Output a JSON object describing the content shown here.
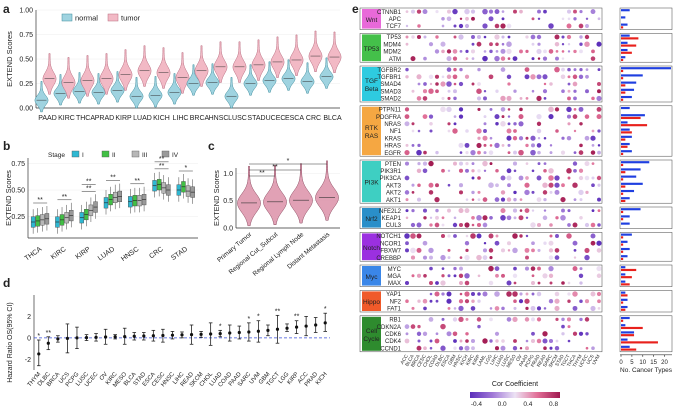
{
  "chart_data": [
    {
      "panel": "a",
      "type": "violin",
      "ylabel": "EXTEND Scores",
      "ylim": [
        0,
        1
      ],
      "yticks": [
        "0.00",
        "0.25",
        "0.50",
        "0.75",
        "1.00"
      ],
      "legend": [
        "normal",
        "tumor"
      ],
      "legend_position": "top-left",
      "categories": [
        "PAAD",
        "KIRC",
        "THCA",
        "PRAD",
        "KIRP",
        "LUAD",
        "KICH",
        "LIHC",
        "BRCA",
        "HNSC",
        "LUSC",
        "STAD",
        "UCEC",
        "ESCA",
        "CRC",
        "BLCA"
      ],
      "series": [
        {
          "name": "normal",
          "values": [
            0.08,
            0.15,
            0.17,
            0.16,
            0.18,
            0.12,
            0.13,
            0.16,
            0.25,
            0.26,
            0.12,
            0.25,
            0.28,
            0.3,
            0.27,
            0.32
          ]
        },
        {
          "name": "tumor",
          "values": [
            0.3,
            0.26,
            0.28,
            0.3,
            0.34,
            0.38,
            0.36,
            0.31,
            0.38,
            0.42,
            0.42,
            0.44,
            0.47,
            0.49,
            0.53,
            0.52
          ]
        }
      ],
      "colors": {
        "normal": "#9fd3e0",
        "tumor": "#f2b9c5"
      }
    },
    {
      "panel": "b",
      "type": "box",
      "ylabel": "EXTEND Scores",
      "ylim": [
        0.05,
        0.8
      ],
      "yticks": [
        "0.25",
        "0.50",
        "0.75"
      ],
      "legend_title": "Stage",
      "legend": [
        "I",
        "II",
        "III",
        "IV"
      ],
      "stage_colors": [
        "#2fb8d2",
        "#42c045",
        "#b7b7b7",
        "#999999"
      ],
      "categories": [
        "THCA",
        "KIRC",
        "KIRP",
        "LUAD",
        "HNSC",
        "CRC",
        "STAD"
      ],
      "stage_medians": [
        [
          0.2,
          0.21,
          0.22,
          0.23
        ],
        [
          0.2,
          0.22,
          0.24,
          0.26
        ],
        [
          0.24,
          0.27,
          0.31,
          0.34
        ],
        [
          0.38,
          0.41,
          0.43,
          0.44
        ],
        [
          0.39,
          0.4,
          0.4,
          0.41
        ],
        [
          0.54,
          0.55,
          0.52,
          0.5
        ],
        [
          0.5,
          0.53,
          0.49,
          0.48
        ]
      ],
      "sig_labels": [
        "**",
        "**",
        "**",
        "**",
        "**",
        "**",
        "**",
        "**",
        "*"
      ]
    },
    {
      "panel": "c",
      "type": "violin",
      "ylabel": "EXTEND Scores",
      "ylim": [
        0,
        1.1
      ],
      "yticks": [
        "0.0",
        "0.5",
        "1.0"
      ],
      "categories": [
        "Primary Tumor",
        "Regional Cut_Subcut",
        "Regional Lymph Node",
        "Distant Metastasis"
      ],
      "values": [
        0.46,
        0.48,
        0.51,
        0.56
      ],
      "sig_labels": [
        "*",
        "**",
        "**"
      ],
      "color": "#d98aa3"
    },
    {
      "panel": "d",
      "type": "errorbar",
      "ylabel": "Hazard Ratio OS(95% CI)",
      "ylim": [
        -3,
        4
      ],
      "yticks": [
        "-2",
        "0",
        "2"
      ],
      "categories": [
        "THYM",
        "DLBC",
        "BRCA",
        "UCS",
        "PCPG",
        "LUSC",
        "UCEC",
        "OV",
        "KIRC",
        "MESO",
        "BLCA",
        "STAD",
        "ESCA",
        "CESC",
        "HNSC",
        "LIHC",
        "READ",
        "SKCM",
        "CHOL",
        "LUAD",
        "COAD",
        "PAAD",
        "SARC",
        "UVM",
        "GBM",
        "TGCT",
        "LGG",
        "KIRP",
        "ACC",
        "PRAD",
        "KICH"
      ],
      "hr": [
        -1.5,
        -0.5,
        -0.1,
        -0.05,
        0.0,
        0.02,
        0.05,
        0.08,
        0.1,
        0.12,
        0.15,
        0.17,
        0.2,
        0.22,
        0.25,
        0.28,
        0.3,
        0.33,
        0.36,
        0.4,
        0.45,
        0.5,
        0.55,
        0.62,
        0.7,
        0.8,
        0.9,
        1.0,
        1.1,
        1.2,
        1.4
      ],
      "lo": [
        -2.6,
        -1.1,
        -0.4,
        -1.4,
        -1.0,
        -0.25,
        -0.3,
        -0.6,
        -0.1,
        -0.6,
        -0.2,
        -0.2,
        -0.3,
        -0.4,
        -0.1,
        0.0,
        -0.6,
        0.05,
        -0.7,
        0.1,
        -0.3,
        -0.1,
        -0.3,
        -0.4,
        0.2,
        -0.5,
        0.6,
        0.4,
        0.2,
        0.5,
        0.6
      ],
      "hi": [
        -0.2,
        0.1,
        0.2,
        1.3,
        1.0,
        0.3,
        0.4,
        0.8,
        0.3,
        0.9,
        0.5,
        0.5,
        0.7,
        0.8,
        0.6,
        0.55,
        1.2,
        0.6,
        1.4,
        0.7,
        1.2,
        1.1,
        1.4,
        1.6,
        1.2,
        2.1,
        1.3,
        1.6,
        2.0,
        1.9,
        2.3
      ],
      "sig": [
        "*",
        "**",
        "",
        "",
        "",
        "",
        "",
        "",
        "",
        "",
        "",
        "",
        "",
        "",
        "",
        "",
        "",
        "",
        "",
        "*",
        "",
        "",
        "*",
        "*",
        "",
        "**",
        "",
        "**",
        "",
        "",
        "*"
      ]
    },
    {
      "panel": "e",
      "type": "dotmatrix",
      "colorbar_label": "Cor Coefficient",
      "colorbar_ticks": [
        "-0.4",
        "0.0",
        "0.4",
        "0.8"
      ],
      "bar_xlabel": "No. Cancer Types",
      "bar_ticks": [
        "0",
        "5",
        "10",
        "15",
        "20"
      ],
      "cancer_types": [
        "ACC",
        "BLCA",
        "BRCA",
        "CESC",
        "CHOL",
        "COAD",
        "DLBC",
        "ESCA",
        "GBM",
        "HNSC",
        "KICH",
        "KIRC",
        "KIRP",
        "LAML",
        "LGG",
        "LIHC",
        "LUAD",
        "LUSC",
        "MESO",
        "OV",
        "PAAD",
        "PCPG",
        "PRAD",
        "READ",
        "SARC",
        "SKCM",
        "STAD",
        "TGCT",
        "THCA",
        "THYM",
        "UCEC",
        "UCS",
        "UVM"
      ],
      "groups": [
        {
          "name": "Wnt",
          "color": "#e869d9",
          "genes": [
            "CTNNB1",
            "APC",
            "TCF7"
          ],
          "red": [
            0,
            0,
            1
          ],
          "blue": [
            4,
            2,
            3
          ]
        },
        {
          "name": "TP53",
          "color": "#44c04a",
          "genes": [
            "TP53",
            "MDM4",
            "MDM2",
            "ATM"
          ],
          "red": [
            8,
            7,
            5,
            1
          ],
          "blue": [
            4,
            3,
            3,
            2
          ]
        },
        {
          "name": "TGF Beta",
          "color": "#2ecbe0",
          "genes": [
            "TGFBR2",
            "TGFBR1",
            "SMAD4",
            "SMAD3",
            "SMAD2"
          ],
          "red": [
            1,
            1,
            2,
            2,
            1
          ],
          "blue": [
            23,
            10,
            7,
            6,
            5
          ]
        },
        {
          "name": "RTK RAS",
          "color": "#f5a742",
          "genes": [
            "PTPN11",
            "PDGFRA",
            "NRAS",
            "NF1",
            "KRAS",
            "HRAS",
            "EGFR"
          ],
          "red": [
            0,
            9,
            12,
            5,
            2,
            3,
            1
          ],
          "blue": [
            4,
            11,
            3,
            4,
            5,
            4,
            5
          ]
        },
        {
          "name": "PI3K",
          "color": "#3ecfc2",
          "genes": [
            "PTEN",
            "PIK3R1",
            "PIK3CA",
            "AKT3",
            "AKT2",
            "AKT1"
          ],
          "red": [
            1,
            2,
            1,
            2,
            1,
            2
          ],
          "blue": [
            13,
            9,
            7,
            10,
            6,
            4
          ]
        },
        {
          "name": "Nrf2",
          "color": "#2a8fc9",
          "genes": [
            "NFE2L2",
            "KEAP1",
            "CUL3"
          ],
          "red": [
            1,
            1,
            0
          ],
          "blue": [
            9,
            4,
            4
          ]
        },
        {
          "name": "Notch",
          "color": "#9b30e0",
          "genes": [
            "NOTCH1",
            "NCOR1",
            "FBXW7",
            "CREBBP"
          ],
          "red": [
            1,
            1,
            1,
            1
          ],
          "blue": [
            5,
            3,
            4,
            3
          ]
        },
        {
          "name": "Myc",
          "color": "#3a86e8",
          "genes": [
            "MYC",
            "MGA",
            "MAX"
          ],
          "red": [
            7,
            5,
            4
          ],
          "blue": [
            2,
            2,
            2
          ]
        },
        {
          "name": "Hippo",
          "color": "#f05a2a",
          "genes": [
            "YAP1",
            "NF2",
            "FAT1"
          ],
          "red": [
            3,
            1,
            2
          ],
          "blue": [
            2,
            3,
            3
          ]
        },
        {
          "name": "Cell Cycle",
          "color": "#2e8b2e",
          "genes": [
            "RB1",
            "CDKN2A",
            "CDK6",
            "CDK4",
            "CCND1"
          ],
          "red": [
            1,
            10,
            6,
            17,
            7
          ],
          "blue": [
            4,
            2,
            6,
            3,
            4
          ]
        }
      ]
    }
  ],
  "panel_labels": [
    "a",
    "b",
    "c",
    "d",
    "e"
  ]
}
